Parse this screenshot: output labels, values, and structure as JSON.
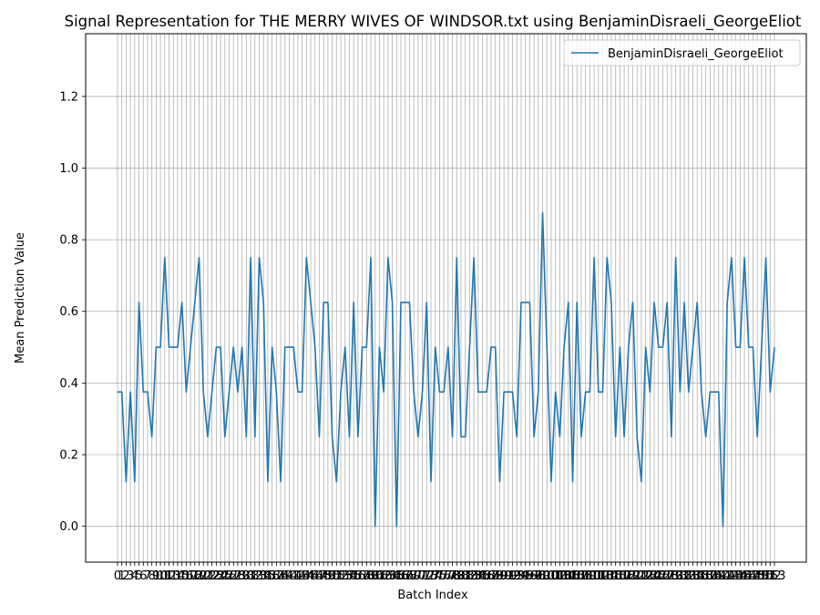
{
  "chart_data": {
    "type": "line",
    "title": "Signal Representation for THE MERRY WIVES OF WINDSOR.txt using BenjaminDisraeli_GeorgeEliot",
    "xlabel": "Batch Index",
    "ylabel": "Mean Prediction Value",
    "ylim": [
      -0.1,
      1.375
    ],
    "yticks": [
      0.0,
      0.2,
      0.4,
      0.6,
      0.8,
      1.0,
      1.2
    ],
    "grid": true,
    "legend_position": "top-right",
    "line_color": "#1f77b4",
    "x": [
      0,
      1,
      2,
      3,
      4,
      5,
      6,
      7,
      8,
      9,
      10,
      11,
      12,
      13,
      14,
      15,
      16,
      17,
      18,
      19,
      20,
      21,
      22,
      23,
      24,
      25,
      26,
      27,
      28,
      29,
      30,
      31,
      32,
      33,
      34,
      35,
      36,
      37,
      38,
      39,
      40,
      41,
      42,
      43,
      44,
      45,
      46,
      47,
      48,
      49,
      50,
      51,
      52,
      53,
      54,
      55,
      56,
      57,
      58,
      59,
      60,
      61,
      62,
      63,
      64,
      65,
      66,
      67,
      68,
      69,
      70,
      71,
      72,
      73,
      74,
      75,
      76,
      77,
      78,
      79,
      80,
      81,
      82,
      83,
      84,
      85,
      86,
      87,
      88,
      89,
      90,
      91,
      92,
      93,
      94,
      95,
      96,
      97,
      98,
      99,
      100,
      101,
      102,
      103,
      104,
      105,
      106,
      107,
      108,
      109,
      110,
      111,
      112,
      113,
      114,
      115,
      116,
      117,
      118,
      119,
      120,
      121,
      122,
      123,
      124,
      125,
      126,
      127,
      128,
      129,
      130,
      131,
      132,
      133,
      134,
      135,
      136,
      137,
      138,
      139,
      140,
      141,
      142,
      143,
      144,
      145,
      146,
      147,
      148,
      149,
      150,
      151,
      152,
      153
    ],
    "series": [
      {
        "name": "BenjaminDisraeli_GeorgeEliot",
        "values": [
          0.375,
          0.375,
          0.125,
          0.375,
          0.125,
          0.625,
          0.375,
          0.375,
          0.25,
          0.5,
          0.5,
          0.75,
          0.5,
          0.5,
          0.5,
          0.625,
          0.375,
          0.5,
          0.625,
          0.75,
          0.375,
          0.25,
          0.375,
          0.5,
          0.5,
          0.25,
          0.375,
          0.5,
          0.375,
          0.5,
          0.25,
          0.75,
          0.25,
          0.75,
          0.625,
          0.125,
          0.5,
          0.375,
          0.125,
          0.5,
          0.5,
          0.5,
          0.375,
          0.375,
          0.75,
          0.625,
          0.5,
          0.25,
          0.625,
          0.625,
          0.25,
          0.125,
          0.375,
          0.5,
          0.25,
          0.625,
          0.25,
          0.5,
          0.5,
          0.75,
          0.0,
          0.5,
          0.375,
          0.75,
          0.625,
          0.0,
          0.625,
          0.625,
          0.625,
          0.375,
          0.25,
          0.375,
          0.625,
          0.125,
          0.5,
          0.375,
          0.375,
          0.5,
          0.25,
          0.75,
          0.25,
          0.25,
          0.5,
          0.75,
          0.375,
          0.375,
          0.375,
          0.5,
          0.5,
          0.125,
          0.375,
          0.375,
          0.375,
          0.25,
          0.625,
          0.625,
          0.625,
          0.25,
          0.375,
          0.875,
          0.5,
          0.125,
          0.375,
          0.25,
          0.5,
          0.625,
          0.125,
          0.625,
          0.25,
          0.375,
          0.375,
          0.75,
          0.375,
          0.375,
          0.75,
          0.625,
          0.25,
          0.5,
          0.25,
          0.5,
          0.625,
          0.25,
          0.125,
          0.5,
          0.375,
          0.625,
          0.5,
          0.5,
          0.625,
          0.25,
          0.75,
          0.375,
          0.625,
          0.375,
          0.5,
          0.625,
          0.375,
          0.25,
          0.375,
          0.375,
          0.375,
          0.0,
          0.625,
          0.75,
          0.5,
          0.5,
          0.75,
          0.5,
          0.5,
          0.25,
          0.5,
          0.75,
          0.375,
          0.5
        ]
      }
    ]
  }
}
